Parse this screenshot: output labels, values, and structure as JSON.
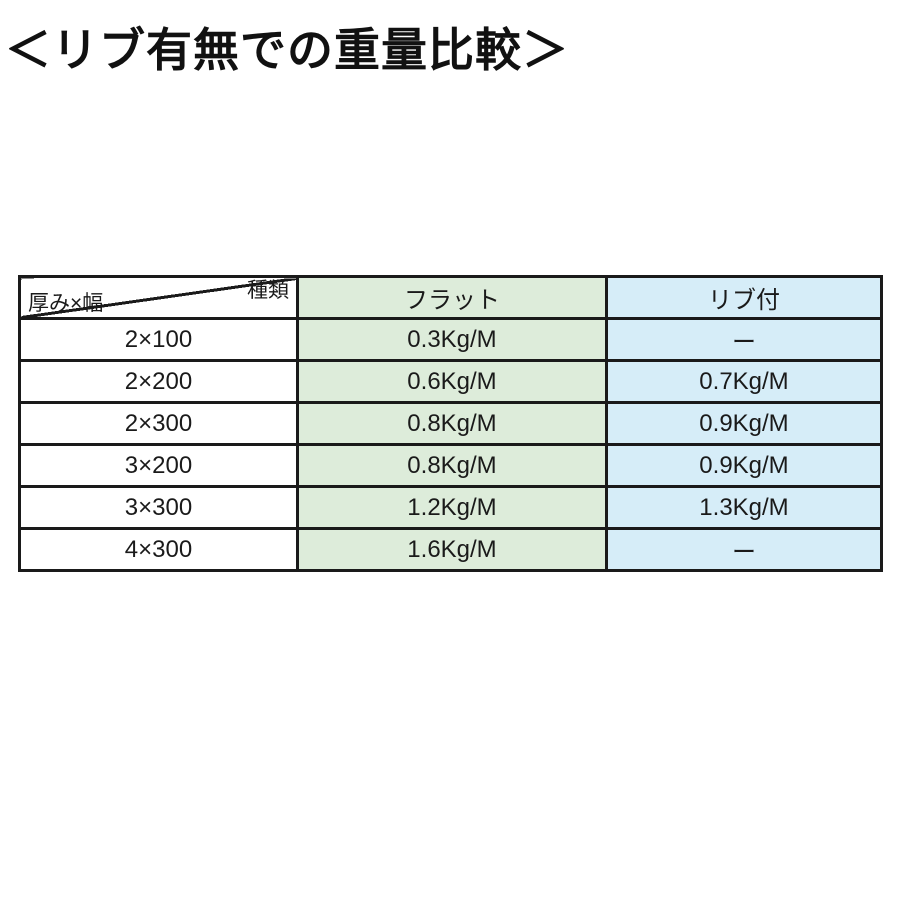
{
  "page": {
    "title": "＜リブ有無での重量比較＞"
  },
  "colors": {
    "flat_column_bg": "#ddecda",
    "rib_column_bg": "#d6edf8",
    "border": "#1a1a1a",
    "page_bg": "#ffffff"
  },
  "table": {
    "corner": {
      "top_right": "種類",
      "bottom_left": "厚み×幅"
    },
    "columns": [
      {
        "label": "フラット"
      },
      {
        "label": "リブ付"
      }
    ],
    "rows": [
      {
        "size": "2×100",
        "flat": "0.3Kg/M",
        "rib": "ー"
      },
      {
        "size": "2×200",
        "flat": "0.6Kg/M",
        "rib": "0.7Kg/M"
      },
      {
        "size": "2×300",
        "flat": "0.8Kg/M",
        "rib": "0.9Kg/M"
      },
      {
        "size": "3×200",
        "flat": "0.8Kg/M",
        "rib": "0.9Kg/M"
      },
      {
        "size": "3×300",
        "flat": "1.2Kg/M",
        "rib": "1.3Kg/M"
      },
      {
        "size": "4×300",
        "flat": "1.6Kg/M",
        "rib": "ー"
      }
    ]
  },
  "chart_data": {
    "type": "table",
    "title": "＜リブ有無での重量比較＞",
    "corner_header": {
      "top_right": "種類",
      "bottom_left": "厚み×幅"
    },
    "columns": [
      "厚み×幅",
      "フラット",
      "リブ付"
    ],
    "rows": [
      [
        "2×100",
        "0.3Kg/M",
        "ー"
      ],
      [
        "2×200",
        "0.6Kg/M",
        "0.7Kg/M"
      ],
      [
        "2×300",
        "0.8Kg/M",
        "0.9Kg/M"
      ],
      [
        "3×200",
        "0.8Kg/M",
        "0.9Kg/M"
      ],
      [
        "3×300",
        "1.2Kg/M",
        "1.3Kg/M"
      ],
      [
        "4×300",
        "1.6Kg/M",
        "ー"
      ]
    ]
  }
}
